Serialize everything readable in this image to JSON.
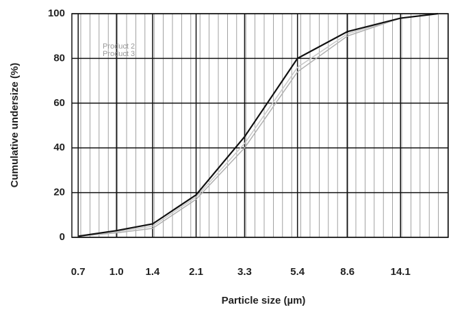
{
  "chart_data": {
    "type": "line",
    "xlabel": "Particle size (µm)",
    "ylabel": "Cumulative undersize (%)",
    "log_x": true,
    "grid": true,
    "xlim": [
      0.66,
      22
    ],
    "xticks": [
      0.7,
      {
        "value": 1,
        "label": "1.0"
      },
      1.4,
      2.1,
      3.3,
      5.4,
      8.6,
      14.1
    ],
    "ylim": [
      0,
      100
    ],
    "yticks": [
      0,
      20,
      40,
      60,
      80,
      100
    ],
    "series": [
      {
        "name": "Product 2",
        "color": "#b0b0b0",
        "x": [
          0.7,
          1.0,
          1.4,
          2.1,
          3.3,
          5.4,
          8.6,
          14.1,
          20
        ],
        "values": [
          0.5,
          2,
          4,
          17,
          40,
          74,
          90,
          98,
          100
        ]
      },
      {
        "name": "Product 3",
        "color": "#c8c8c8",
        "x": [
          0.7,
          1.0,
          1.4,
          2.1,
          3.3,
          5.4,
          8.6,
          14.1,
          20
        ],
        "values": [
          0.5,
          2.5,
          5,
          18,
          42,
          76,
          91,
          98,
          100
        ]
      },
      {
        "name": null,
        "color": "#111111",
        "x": [
          0.7,
          1.0,
          1.4,
          2.1,
          3.3,
          5.4,
          8.6,
          14.1,
          20
        ],
        "values": [
          0.5,
          3,
          6,
          19,
          45,
          80,
          92,
          98,
          100
        ]
      }
    ]
  }
}
